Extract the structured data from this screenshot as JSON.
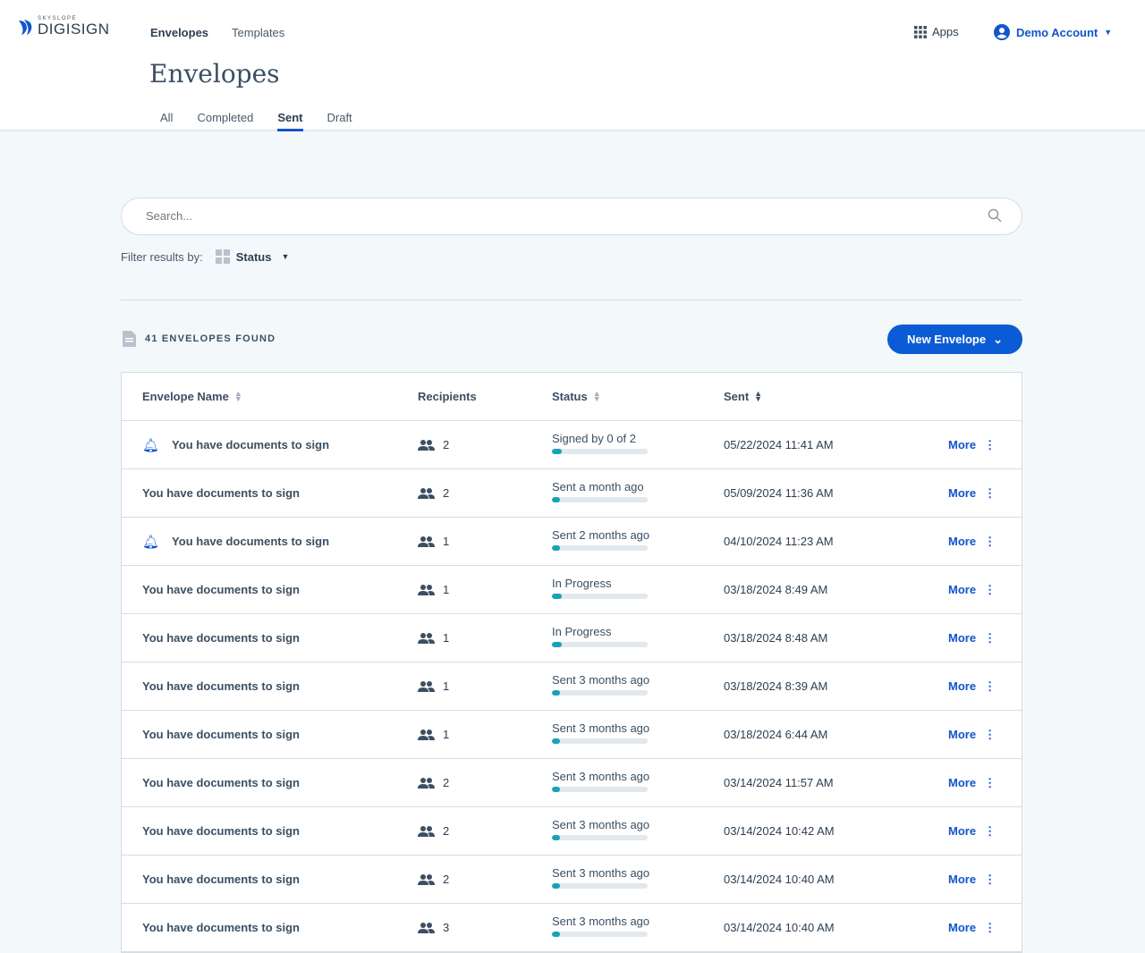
{
  "brand": {
    "small": "SKYSLOPE",
    "big": "DIGISIGN"
  },
  "nav": {
    "envelopes": "Envelopes",
    "templates": "Templates",
    "apps": "Apps",
    "account": "Demo Account"
  },
  "page": {
    "title": "Envelopes"
  },
  "tabs": [
    "All",
    "Completed",
    "Sent",
    "Draft"
  ],
  "active_tab": "Sent",
  "search": {
    "placeholder": "Search..."
  },
  "filter": {
    "label": "Filter results by:",
    "status": "Status"
  },
  "results": {
    "count_label": "41 ENVELOPES FOUND",
    "new_button": "New Envelope"
  },
  "table": {
    "headers": {
      "name": "Envelope Name",
      "recipients": "Recipients",
      "status": "Status",
      "sent": "Sent"
    },
    "more_label": "More",
    "rows": [
      {
        "alert": true,
        "name": "You have documents to sign",
        "recipients": "2",
        "status": "Signed by 0 of 2",
        "progress": 0.1,
        "sent": "05/22/2024 11:41 AM"
      },
      {
        "alert": false,
        "name": "You have documents to sign",
        "recipients": "2",
        "status": "Sent a month ago",
        "progress": 0.05,
        "sent": "05/09/2024 11:36 AM"
      },
      {
        "alert": true,
        "name": "You have documents to sign",
        "recipients": "1",
        "status": "Sent 2 months ago",
        "progress": 0.05,
        "sent": "04/10/2024 11:23 AM"
      },
      {
        "alert": false,
        "name": "You have documents to sign",
        "recipients": "1",
        "status": "In Progress",
        "progress": 0.1,
        "sent": "03/18/2024 8:49 AM"
      },
      {
        "alert": false,
        "name": "You have documents to sign",
        "recipients": "1",
        "status": "In Progress",
        "progress": 0.1,
        "sent": "03/18/2024 8:48 AM"
      },
      {
        "alert": false,
        "name": "You have documents to sign",
        "recipients": "1",
        "status": "Sent 3 months ago",
        "progress": 0.05,
        "sent": "03/18/2024 8:39 AM"
      },
      {
        "alert": false,
        "name": "You have documents to sign",
        "recipients": "1",
        "status": "Sent 3 months ago",
        "progress": 0.05,
        "sent": "03/18/2024 6:44 AM"
      },
      {
        "alert": false,
        "name": "You have documents to sign",
        "recipients": "2",
        "status": "Sent 3 months ago",
        "progress": 0.05,
        "sent": "03/14/2024 11:57 AM"
      },
      {
        "alert": false,
        "name": "You have documents to sign",
        "recipients": "2",
        "status": "Sent 3 months ago",
        "progress": 0.05,
        "sent": "03/14/2024 10:42 AM"
      },
      {
        "alert": false,
        "name": "You have documents to sign",
        "recipients": "2",
        "status": "Sent 3 months ago",
        "progress": 0.05,
        "sent": "03/14/2024 10:40 AM"
      },
      {
        "alert": false,
        "name": "You have documents to sign",
        "recipients": "3",
        "status": "Sent 3 months ago",
        "progress": 0.05,
        "sent": "03/14/2024 10:40 AM"
      }
    ]
  },
  "colors": {
    "accent": "#0c5bd6",
    "progress": "#18a3b5"
  }
}
